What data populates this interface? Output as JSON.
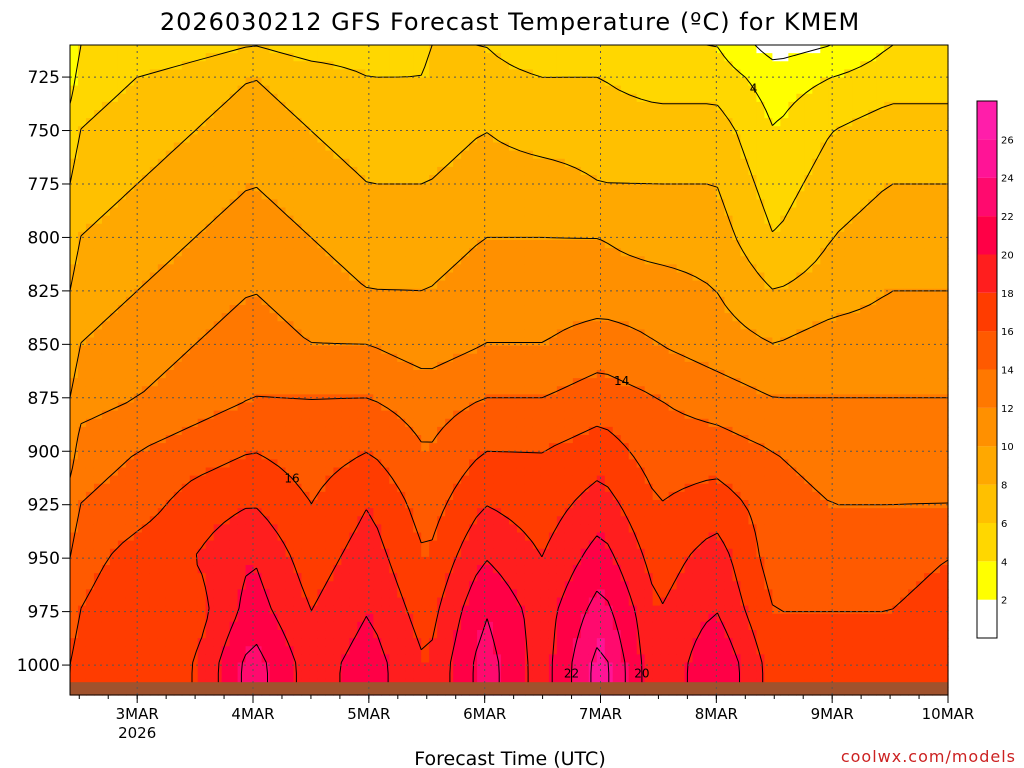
{
  "chart_data": {
    "type": "heatmap",
    "title": "2026030212 GFS Forecast Temperature (ºC) for KMEM",
    "xlabel": "Forecast Time (UTC)",
    "ylabel": "",
    "credit": "coolwx.com/models",
    "x_ticks": [
      "3MAR",
      "4MAR",
      "5MAR",
      "6MAR",
      "7MAR",
      "8MAR",
      "9MAR",
      "10MAR"
    ],
    "x_tick_sub": "2026",
    "x_range_days": [
      -0.58,
      7.0
    ],
    "y_ticks": [
      725,
      750,
      775,
      800,
      825,
      850,
      875,
      900,
      925,
      950,
      975,
      1000
    ],
    "y_range_hpa": [
      710,
      1014
    ],
    "ground_hpa": 1008,
    "colorbar_levels": [
      2,
      4,
      6,
      8,
      10,
      12,
      14,
      16,
      18,
      20,
      22,
      24,
      26
    ],
    "colorbar_ticks": [
      "2",
      "4",
      "6",
      "8",
      "10",
      "12",
      "14",
      "16",
      "18",
      "20",
      "22",
      "24",
      "26"
    ],
    "colorbar_colors": [
      "#ffffff",
      "#ffff00",
      "#ffd700",
      "#ffc000",
      "#ffa800",
      "#ff9000",
      "#ff7800",
      "#ff5a00",
      "#ff3c00",
      "#ff1e1e",
      "#ff0046",
      "#ff0a6e",
      "#ff1496",
      "#ff1eaa"
    ],
    "colors": {
      "ground": "#a0522d",
      "grid": "#555555",
      "contour": "#000000"
    },
    "temperature_grid": {
      "x_days": [
        -0.58,
        -0.5,
        0.0,
        0.5,
        1.0,
        1.5,
        2.0,
        2.5,
        3.0,
        3.5,
        4.0,
        4.5,
        5.0,
        5.5,
        6.0,
        6.5,
        7.0
      ],
      "p_hpa": [
        710,
        725,
        750,
        775,
        800,
        825,
        850,
        875,
        900,
        925,
        950,
        975,
        1000,
        1014
      ],
      "values": [
        [
          2,
          4,
          4,
          5,
          6,
          5,
          5,
          6,
          6,
          4,
          5,
          4,
          4,
          1,
          2,
          4,
          4
        ],
        [
          3,
          5,
          6,
          7,
          8,
          7,
          6,
          6,
          7,
          6,
          6,
          5,
          5,
          3,
          4,
          5,
          5
        ],
        [
          5,
          6,
          7,
          8,
          9,
          8,
          7,
          7,
          8,
          7,
          7,
          7,
          7,
          4,
          6,
          7,
          7
        ],
        [
          6,
          7,
          8,
          9,
          10,
          9,
          8,
          8,
          9,
          9,
          8,
          8,
          8,
          5,
          7,
          8,
          8
        ],
        [
          7,
          8,
          9,
          10,
          11,
          10,
          9,
          9,
          10,
          10,
          10,
          9,
          9,
          6,
          8,
          9,
          9
        ],
        [
          8,
          9,
          10,
          11,
          12,
          11,
          10,
          10,
          11,
          11,
          11,
          11,
          10,
          8,
          9,
          10,
          10
        ],
        [
          9,
          10,
          11,
          12,
          13,
          12,
          12,
          11,
          12,
          12,
          13,
          12,
          11,
          10,
          11,
          11,
          11
        ],
        [
          10,
          11,
          12,
          13,
          14,
          14,
          14,
          13,
          14,
          14,
          15,
          14,
          13,
          12,
          12,
          12,
          12
        ],
        [
          11,
          13,
          14,
          15,
          16,
          15,
          16,
          14,
          16,
          16,
          17,
          15,
          15,
          14,
          13,
          13,
          13
        ],
        [
          13,
          14,
          15,
          17,
          18,
          16,
          18,
          15,
          18,
          17,
          19,
          16,
          17,
          15,
          14,
          14,
          14
        ],
        [
          14,
          15,
          17,
          18,
          20,
          17,
          19,
          16,
          20,
          18,
          21,
          17,
          19,
          15,
          15,
          15,
          16
        ],
        [
          15,
          16,
          18,
          17,
          21,
          18,
          20,
          17,
          22,
          19,
          23,
          18,
          20,
          16,
          16,
          16,
          17
        ],
        [
          16,
          17,
          17,
          18,
          23,
          19,
          21,
          18,
          23,
          19,
          25,
          18,
          22,
          17,
          17,
          17,
          18
        ],
        [
          16,
          17,
          17,
          18,
          23,
          19,
          21,
          18,
          23,
          19,
          25,
          18,
          22,
          17,
          17,
          17,
          18
        ]
      ]
    }
  }
}
